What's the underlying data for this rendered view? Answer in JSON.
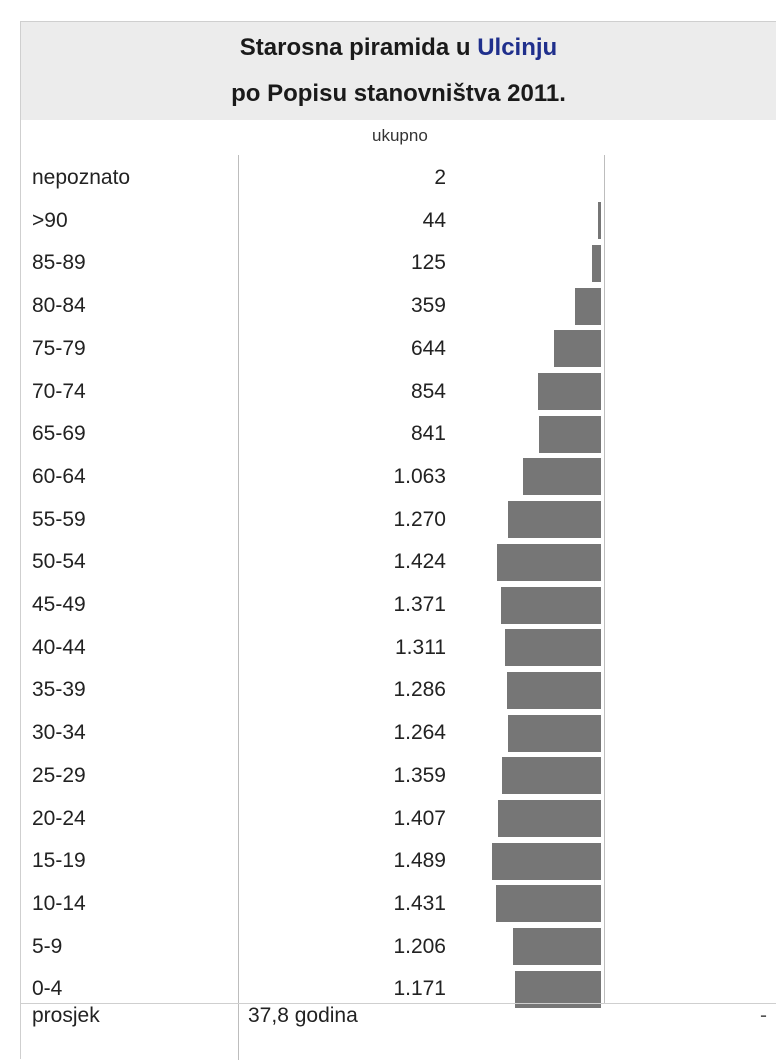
{
  "title": {
    "prefix": "Starosna piramida u ",
    "place": "Ulcinju",
    "line2": "po Popisu stanovništva 2011."
  },
  "column_header": "ukupno",
  "chart_data": {
    "type": "bar",
    "orientation": "horizontal",
    "categories": [
      "nepoznato",
      ">90",
      "85-89",
      "80-84",
      "75-79",
      "70-74",
      "65-69",
      "60-64",
      "55-59",
      "50-54",
      "45-49",
      "40-44",
      "35-39",
      "30-34",
      "25-29",
      "20-24",
      "15-19",
      "10-14",
      "5-9",
      "0-4"
    ],
    "values": [
      2,
      44,
      125,
      359,
      644,
      854,
      841,
      1063,
      1270,
      1424,
      1371,
      1311,
      1286,
      1264,
      1359,
      1407,
      1489,
      1431,
      1206,
      1171
    ],
    "value_labels": [
      "2",
      "44",
      "125",
      "359",
      "644",
      "854",
      "841",
      "1.063",
      "1.270",
      "1.424",
      "1.371",
      "1.311",
      "1.286",
      "1.264",
      "1.359",
      "1.407",
      "1.489",
      "1.431",
      "1.206",
      "1.171"
    ],
    "bar_color": "#767676"
  },
  "footer": {
    "label": "prosjek",
    "value": "37,8 godina",
    "right": "-"
  }
}
